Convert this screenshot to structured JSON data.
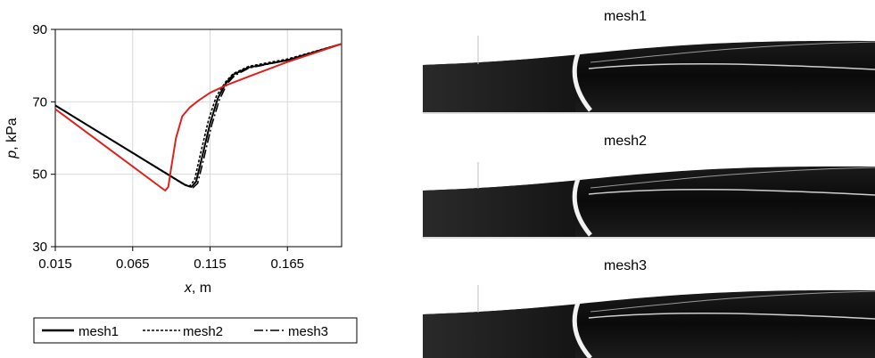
{
  "chart_data": {
    "type": "line",
    "xlabel_var": "x",
    "xlabel_unit": ", m",
    "ylabel_var": "p",
    "ylabel_unit": ", kPa",
    "xlim": [
      0.015,
      0.2
    ],
    "ylim": [
      30,
      90
    ],
    "xticks": [
      "0.015",
      "0.065",
      "0.115",
      "0.165"
    ],
    "xtick_values": [
      0.015,
      0.065,
      0.115,
      0.165
    ],
    "yticks": [
      "30",
      "50",
      "70",
      "90"
    ],
    "ytick_values": [
      30,
      50,
      70,
      90
    ],
    "grid": true,
    "legend_position": "bottom",
    "legend": [
      {
        "name": "mesh1",
        "style": "solid"
      },
      {
        "name": "mesh2",
        "style": "dashed"
      },
      {
        "name": "mesh3",
        "style": "dashdot"
      }
    ],
    "series": [
      {
        "name": "mesh1",
        "color": "#000000",
        "x": [
          0.015,
          0.099,
          0.103,
          0.106,
          0.11,
          0.115,
          0.12,
          0.125,
          0.13,
          0.14,
          0.165,
          0.2
        ],
        "y": [
          69,
          47,
          46.5,
          48,
          55,
          64,
          71,
          75,
          77.5,
          79.5,
          81.5,
          86
        ]
      },
      {
        "name": "mesh2",
        "color": "#000000",
        "x": [
          0.015,
          0.098,
          0.102,
          0.105,
          0.109,
          0.114,
          0.119,
          0.125,
          0.13,
          0.14,
          0.165,
          0.2
        ],
        "y": [
          69,
          47.2,
          46.8,
          48.5,
          56,
          65,
          71.5,
          75.5,
          77.8,
          79.8,
          81.8,
          86
        ]
      },
      {
        "name": "mesh3",
        "color": "#000000",
        "x": [
          0.015,
          0.1,
          0.104,
          0.107,
          0.111,
          0.116,
          0.121,
          0.126,
          0.131,
          0.14,
          0.165,
          0.2
        ],
        "y": [
          69,
          46.8,
          46.3,
          47.5,
          54.5,
          63.5,
          70.5,
          75,
          77.3,
          79.3,
          81.5,
          86
        ]
      },
      {
        "color": "#e0201b",
        "x": [
          0.015,
          0.086,
          0.088,
          0.09,
          0.093,
          0.097,
          0.102,
          0.108,
          0.115,
          0.125,
          0.14,
          0.165,
          0.2
        ],
        "y": [
          68,
          45.5,
          46.5,
          52,
          60,
          66,
          68.5,
          70.5,
          72.5,
          74.5,
          77,
          81,
          86
        ]
      }
    ]
  },
  "meshes": {
    "mesh1": {
      "title": "mesh1"
    },
    "mesh2": {
      "title": "mesh2"
    },
    "mesh3": {
      "title": "mesh3"
    }
  }
}
